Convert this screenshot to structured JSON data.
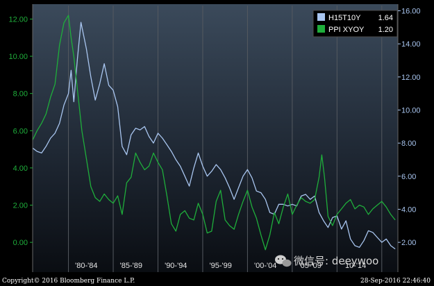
{
  "chart_data": {
    "type": "line",
    "x_range": [
      1976,
      2016.8
    ],
    "x_tick_labels": [
      {
        "label": "'80-'84",
        "x": 1982
      },
      {
        "label": "'85-'89",
        "x": 1987
      },
      {
        "label": "'90-'94",
        "x": 1992
      },
      {
        "label": "'95-'99",
        "x": 1997
      },
      {
        "label": "'00-'04",
        "x": 2002
      },
      {
        "label": "'05-'09",
        "x": 2007
      },
      {
        "label": "'10-'14",
        "x": 2012
      }
    ],
    "x_separators": [
      1980,
      1985,
      1990,
      1995,
      2000,
      2005,
      2010,
      2015
    ],
    "left_axis": {
      "range": [
        -1.6,
        12.8
      ],
      "ticks": [
        0,
        2,
        4,
        6,
        8,
        10,
        12
      ],
      "tick_labels": [
        "0.00",
        "2.00",
        "4.00",
        "6.00",
        "8.00",
        "10.00",
        "12.00"
      ],
      "color": "#1fae3b"
    },
    "right_axis": {
      "range": [
        0.2,
        16.4
      ],
      "ticks": [
        2,
        4,
        6,
        8,
        10,
        12,
        14,
        16
      ],
      "tick_labels": [
        "2.00",
        "4.00",
        "6.00",
        "8.00",
        "10.00",
        "12.00",
        "14.00",
        "16.00"
      ],
      "color": "#a9c6f0"
    },
    "grid": false,
    "legend_position": "top-right",
    "series": [
      {
        "name": "H15T10Y",
        "last_value": "1.64",
        "axis": "right",
        "color": "#a9c6f0",
        "x": [
          1976,
          1976.5,
          1977,
          1977.5,
          1978,
          1978.5,
          1979,
          1979.5,
          1980,
          1980.3,
          1980.6,
          1981,
          1981.4,
          1981.7,
          1982,
          1982.5,
          1983,
          1983.5,
          1984,
          1984.5,
          1985,
          1985.5,
          1986,
          1986.5,
          1987,
          1987.5,
          1988,
          1988.5,
          1989,
          1989.5,
          1990,
          1990.5,
          1991,
          1991.5,
          1992,
          1992.5,
          1993,
          1993.5,
          1994,
          1994.5,
          1995,
          1995.5,
          1996,
          1996.5,
          1997,
          1997.5,
          1998,
          1998.5,
          1999,
          1999.5,
          2000,
          2000.5,
          2001,
          2001.5,
          2002,
          2002.5,
          2003,
          2003.5,
          2004,
          2004.5,
          2005,
          2005.5,
          2006,
          2006.5,
          2007,
          2007.5,
          2008,
          2008.5,
          2009,
          2009.5,
          2010,
          2010.5,
          2011,
          2011.5,
          2012,
          2012.5,
          2013,
          2013.5,
          2014,
          2014.5,
          2015,
          2015.5,
          2016,
          2016.5
        ],
        "y": [
          7.7,
          7.5,
          7.4,
          7.8,
          8.3,
          8.6,
          9.2,
          10.3,
          11.0,
          12.4,
          10.5,
          13.1,
          15.3,
          14.5,
          13.7,
          12.0,
          10.6,
          11.6,
          12.8,
          11.5,
          11.2,
          10.2,
          7.8,
          7.3,
          8.5,
          8.9,
          8.8,
          9.0,
          8.4,
          8.0,
          8.6,
          8.3,
          7.9,
          7.5,
          7.0,
          6.6,
          6.0,
          5.4,
          6.5,
          7.4,
          6.6,
          6.0,
          6.3,
          6.7,
          6.4,
          5.9,
          5.3,
          4.6,
          5.3,
          6.0,
          6.4,
          5.9,
          5.1,
          5.0,
          4.6,
          3.8,
          3.7,
          4.3,
          4.3,
          4.2,
          4.3,
          4.2,
          4.8,
          4.9,
          4.6,
          4.8,
          3.8,
          3.3,
          2.9,
          3.5,
          3.6,
          2.8,
          3.3,
          2.2,
          1.8,
          1.7,
          2.1,
          2.7,
          2.6,
          2.3,
          2.0,
          2.2,
          1.8,
          1.6
        ]
      },
      {
        "name": "PPI XYOY",
        "last_value": "1.20",
        "axis": "left",
        "color": "#1fae3b",
        "x": [
          1976,
          1976.5,
          1977,
          1977.5,
          1978,
          1978.5,
          1979,
          1979.5,
          1980,
          1980.3,
          1980.6,
          1981,
          1981.5,
          1982,
          1982.5,
          1983,
          1983.5,
          1984,
          1984.5,
          1985,
          1985.5,
          1986,
          1986.5,
          1987,
          1987.5,
          1988,
          1988.5,
          1989,
          1989.5,
          1990,
          1990.5,
          1991,
          1991.5,
          1992,
          1992.5,
          1993,
          1993.5,
          1994,
          1994.5,
          1995,
          1995.5,
          1996,
          1996.5,
          1997,
          1997.5,
          1998,
          1998.5,
          1999,
          1999.5,
          2000,
          2000.5,
          2001,
          2001.5,
          2002,
          2002.5,
          2003,
          2003.5,
          2004,
          2004.5,
          2005,
          2005.5,
          2006,
          2006.5,
          2007,
          2007.5,
          2008,
          2008.3,
          2008.6,
          2009,
          2009.5,
          2010,
          2010.5,
          2011,
          2011.5,
          2012,
          2012.5,
          2013,
          2013.5,
          2014,
          2014.5,
          2015,
          2015.5,
          2016,
          2016.5
        ],
        "y": [
          5.5,
          6.0,
          6.4,
          6.9,
          7.8,
          8.5,
          10.6,
          11.8,
          12.2,
          11.0,
          10.0,
          8.2,
          6.0,
          4.5,
          3.0,
          2.4,
          2.2,
          2.6,
          2.3,
          2.1,
          2.5,
          1.5,
          3.2,
          3.5,
          4.8,
          4.3,
          3.9,
          4.1,
          4.8,
          4.3,
          3.9,
          2.5,
          1.0,
          0.6,
          1.5,
          1.7,
          1.3,
          1.2,
          2.1,
          1.5,
          0.5,
          0.6,
          2.2,
          2.8,
          1.2,
          0.9,
          0.7,
          1.5,
          2.2,
          2.8,
          1.9,
          1.3,
          0.4,
          -0.4,
          0.4,
          1.6,
          1.0,
          1.9,
          2.6,
          1.5,
          2.0,
          2.4,
          2.2,
          2.1,
          2.3,
          3.5,
          4.7,
          3.5,
          1.4,
          0.9,
          1.5,
          1.8,
          2.1,
          2.3,
          1.8,
          2.0,
          1.9,
          1.5,
          1.8,
          2.0,
          2.2,
          1.9,
          1.5,
          1.2
        ]
      }
    ]
  },
  "footer": {
    "copyright": "Copyright© 2016 Bloomberg Finance L.P.",
    "timestamp": "28-Sep-2016 22:46:40"
  },
  "watermark": {
    "text": "微信号: deeywoo"
  }
}
